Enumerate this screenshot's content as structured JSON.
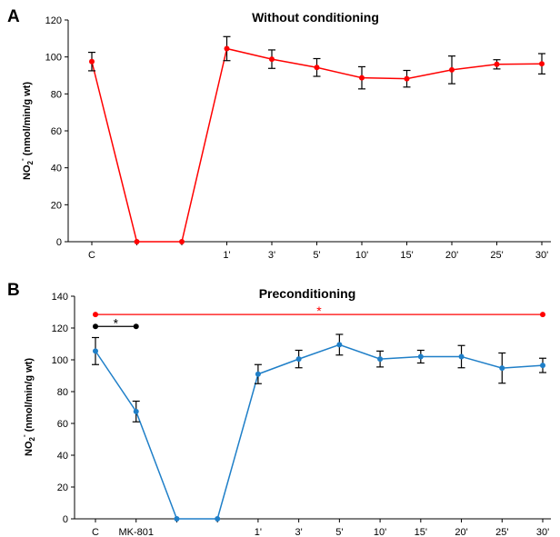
{
  "chart_data": [
    {
      "panel_label": "A",
      "type": "line",
      "title": "Without conditioning",
      "ylabel_main": "NO",
      "ylabel_sub": "2",
      "ylabel_sup": "-",
      "ylabel_rest": " (nmol/min/g wt)",
      "ylim": [
        0,
        120
      ],
      "yticks": [
        0,
        20,
        40,
        60,
        80,
        100,
        120
      ],
      "categories": [
        "C",
        "",
        "",
        "1'",
        "3'",
        "5'",
        "10'",
        "15'",
        "20'",
        "25'",
        "30'"
      ],
      "series": [
        {
          "color": "#ff0000",
          "values": [
            97.5,
            0,
            0,
            104.5,
            98.8,
            94.3,
            88.7,
            88.2,
            93,
            96,
            96.3
          ],
          "errors": [
            5,
            0,
            0,
            6.5,
            5,
            4.8,
            6,
            4.5,
            7.5,
            2.5,
            5.5
          ]
        }
      ],
      "grid": false
    },
    {
      "panel_label": "B",
      "type": "line",
      "title": "Preconditioning",
      "ylabel_main": "NO",
      "ylabel_sub": "2",
      "ylabel_sup": "-",
      "ylabel_rest": " (nmol/min/g wt)",
      "ylim": [
        0,
        140
      ],
      "yticks": [
        0,
        20,
        40,
        60,
        80,
        100,
        120,
        140
      ],
      "categories": [
        "C",
        "MK-801",
        "",
        "",
        "1'",
        "3'",
        "5'",
        "10'",
        "15'",
        "20'",
        "25'",
        "30'"
      ],
      "series": [
        {
          "color": "#1f7fc8",
          "values": [
            105.5,
            67.5,
            0,
            0,
            91,
            100.5,
            109.5,
            100.5,
            102,
            102,
            94.8,
            96.5
          ],
          "errors": [
            8.5,
            6.5,
            0,
            0,
            6,
            5.5,
            6.5,
            5,
            4,
            7,
            9.5,
            4.5
          ]
        }
      ],
      "significance": [
        {
          "symbol": "*",
          "color": "#000000",
          "from": 0,
          "to": 1,
          "y": 121
        },
        {
          "symbol": "*",
          "color": "#ff0000",
          "from": 0,
          "to": 11,
          "y": 128.5
        }
      ],
      "grid": false
    }
  ]
}
